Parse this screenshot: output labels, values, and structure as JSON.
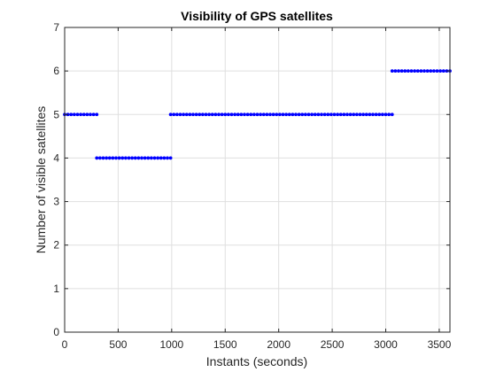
{
  "chart_data": {
    "type": "scatter",
    "title": "Visibility of GPS satellites",
    "xlabel": "Instants (seconds)",
    "ylabel": "Number of visible satellites",
    "xlim": [
      0,
      3600
    ],
    "ylim": [
      0,
      7
    ],
    "xticks": [
      0,
      500,
      1000,
      1500,
      2000,
      2500,
      3000,
      3500
    ],
    "yticks": [
      0,
      1,
      2,
      3,
      4,
      5,
      6,
      7
    ],
    "xtick_labels": [
      "0",
      "500",
      "1000",
      "1500",
      "2000",
      "2500",
      "3000",
      "3500"
    ],
    "ytick_labels": [
      "0",
      "1",
      "2",
      "3",
      "4",
      "5",
      "6",
      "7"
    ],
    "grid": true,
    "box": true,
    "marker": "dot",
    "color": "#0000ff",
    "sample_step_seconds": 30,
    "segments": [
      {
        "x_start": 0,
        "x_end": 300,
        "y": 5
      },
      {
        "x_start": 300,
        "x_end": 990,
        "y": 4
      },
      {
        "x_start": 990,
        "x_end": 3060,
        "y": 5
      },
      {
        "x_start": 3060,
        "x_end": 3600,
        "y": 6
      }
    ]
  },
  "colors": {
    "axis": "#262626",
    "grid": "#dfdfdf",
    "data": "#0000ff"
  }
}
